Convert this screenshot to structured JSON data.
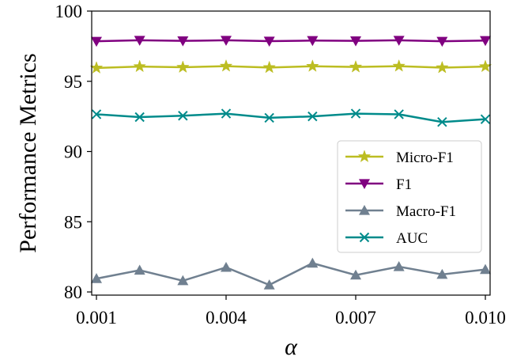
{
  "chart_data": {
    "type": "line",
    "xlabel": "α",
    "ylabel": "Performance Metrics",
    "x": [
      0.001,
      0.002,
      0.003,
      0.004,
      0.005,
      0.006,
      0.007,
      0.008,
      0.009,
      0.01
    ],
    "xlim": [
      0.001,
      0.01
    ],
    "ylim": [
      80,
      100
    ],
    "xticks": [
      "0.001",
      "0.004",
      "0.007",
      "0.010"
    ],
    "xtick_values": [
      0.001,
      0.004,
      0.007,
      0.01
    ],
    "yticks": [
      "80",
      "85",
      "90",
      "95",
      "100"
    ],
    "ytick_values": [
      80,
      85,
      90,
      95,
      100
    ],
    "grid": false,
    "legend_position": "center-right",
    "series": [
      {
        "name": "Micro-F1",
        "color": "#bcbd22",
        "marker": "star",
        "values": [
          95.95,
          96.05,
          96.0,
          96.08,
          95.98,
          96.07,
          96.02,
          96.08,
          95.97,
          96.05
        ]
      },
      {
        "name": "F1",
        "color": "#800080",
        "marker": "triangle-down",
        "values": [
          97.85,
          97.92,
          97.88,
          97.92,
          97.86,
          97.9,
          97.88,
          97.92,
          97.85,
          97.9
        ]
      },
      {
        "name": "Macro-F1",
        "color": "#708090",
        "marker": "triangle-up",
        "values": [
          80.95,
          81.55,
          80.8,
          81.75,
          80.5,
          82.05,
          81.2,
          81.8,
          81.25,
          81.6
        ]
      },
      {
        "name": "AUC",
        "color": "#008b8b",
        "marker": "x",
        "values": [
          92.65,
          92.45,
          92.55,
          92.7,
          92.4,
          92.5,
          92.7,
          92.65,
          92.1,
          92.3
        ]
      }
    ]
  }
}
